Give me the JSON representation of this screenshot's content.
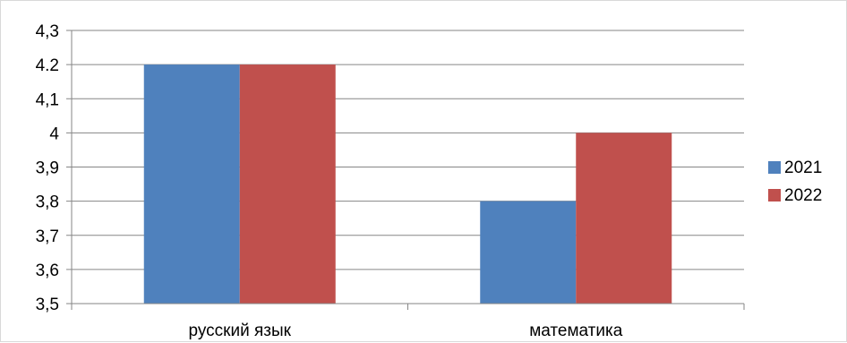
{
  "chart_data": {
    "type": "bar",
    "categories": [
      "русский язык",
      "математика"
    ],
    "series": [
      {
        "name": "2021",
        "values": [
          4.2,
          3.8
        ],
        "color": "#4f81bd"
      },
      {
        "name": "2022",
        "values": [
          4.2,
          4.0
        ],
        "color": "#c0504d"
      }
    ],
    "y_ticks": [
      "3,5",
      "3,6",
      "3,7",
      "3,8",
      "3,9",
      "4",
      "4,1",
      "4.2",
      "4,3"
    ],
    "ylim": [
      3.5,
      4.3
    ],
    "grid": true,
    "legend_position": "right",
    "title": "",
    "xlabel": "",
    "ylabel": ""
  }
}
